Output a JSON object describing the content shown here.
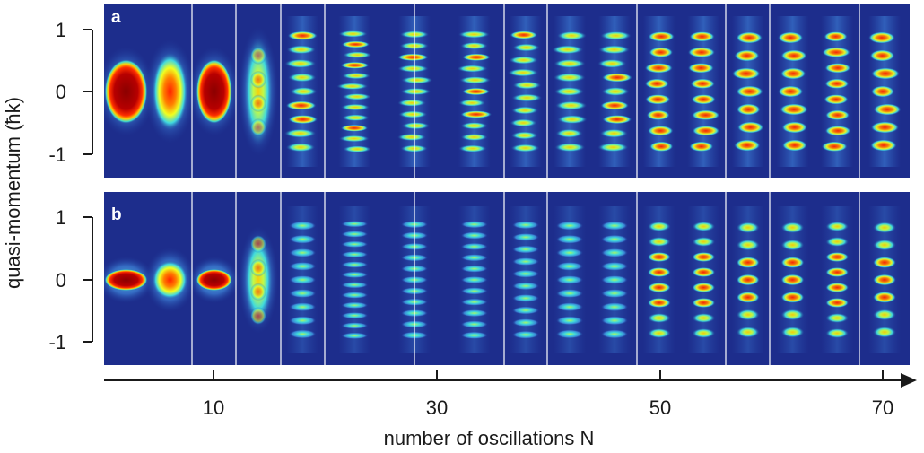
{
  "figure": {
    "y_axis_label": "quasi-momentum (ħk)",
    "x_axis_label": "number of oscillations N",
    "y_ticks": [
      "1",
      "0",
      "-1"
    ],
    "x_ticks": [
      "10",
      "30",
      "50",
      "70"
    ],
    "panels": [
      {
        "id": "a",
        "label": "a",
        "kind": "experiment"
      },
      {
        "id": "b",
        "label": "b",
        "kind": "simulation"
      }
    ]
  },
  "chart_data": {
    "type": "heatmap",
    "title": "",
    "xlabel": "number of oscillations N",
    "ylabel": "quasi-momentum (ħk)",
    "y_ticks": [
      1,
      0,
      -1
    ],
    "x_ticks": [
      10,
      30,
      50,
      70
    ],
    "ylim": [
      -1.3,
      1.3
    ],
    "panels": [
      "a",
      "b"
    ],
    "colormap": "jet",
    "panel_groups": [
      {
        "x_center": 4,
        "strips": 2,
        "peaks": [
          1,
          1
        ]
      },
      {
        "x_center": 13,
        "strips": 3,
        "peaks": [
          1,
          4,
          9
        ]
      },
      {
        "x_center": 26,
        "strips": 3,
        "peaks": [
          12,
          11,
          11
        ]
      },
      {
        "x_center": 38,
        "strips": 1,
        "peaks": [
          10
        ]
      },
      {
        "x_center": 46,
        "strips": 2,
        "peaks": [
          9,
          9
        ]
      },
      {
        "x_center": 54,
        "strips": 2,
        "peaks": [
          8,
          8
        ]
      },
      {
        "x_center": 62,
        "strips": 3,
        "peaks": [
          7,
          7,
          8
        ]
      },
      {
        "x_center": 68,
        "strips": 1,
        "peaks": [
          7
        ]
      }
    ]
  }
}
